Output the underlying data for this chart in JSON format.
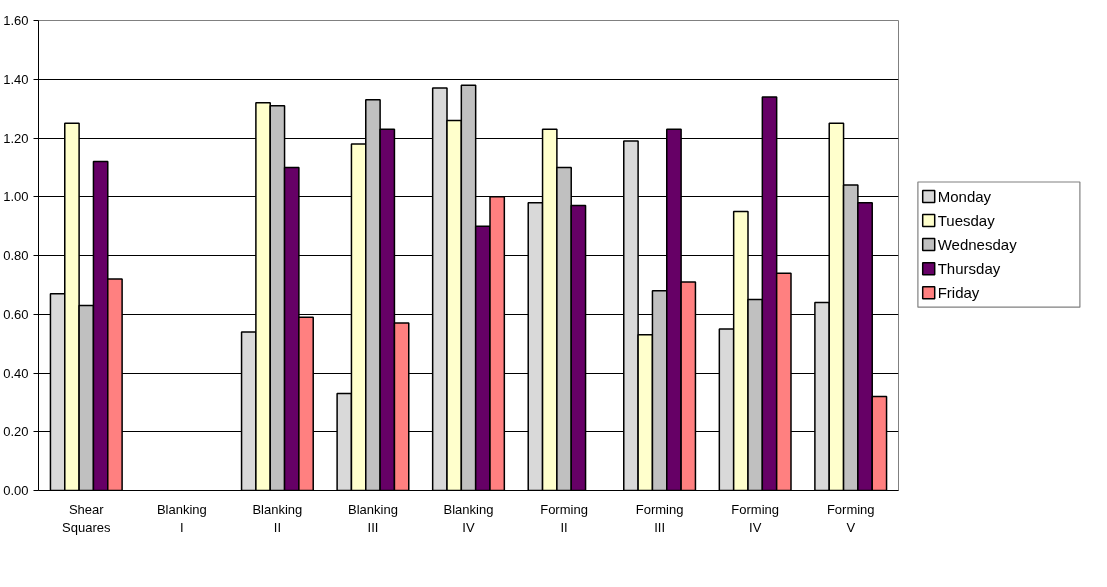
{
  "chart_data": {
    "type": "bar",
    "categories": [
      "Shear\nSquares",
      "Blanking\nI",
      "Blanking\nII",
      "Blanking\nIII",
      "Blanking\nIV",
      "Forming\nII",
      "Forming\nIII",
      "Forming\nIV",
      "Forming\nV"
    ],
    "series": [
      {
        "name": "Monday",
        "color": "#d9d9d9",
        "values": [
          0.67,
          null,
          0.54,
          0.33,
          1.37,
          0.98,
          1.19,
          0.55,
          0.64
        ]
      },
      {
        "name": "Tuesday",
        "color": "#ffffcc",
        "values": [
          1.25,
          null,
          1.32,
          1.18,
          1.26,
          1.23,
          0.53,
          0.95,
          1.25
        ]
      },
      {
        "name": "Wednesday",
        "color": "#c0c0c0",
        "values": [
          0.63,
          null,
          1.31,
          1.33,
          1.38,
          1.1,
          0.68,
          0.65,
          1.04
        ]
      },
      {
        "name": "Thursday",
        "color": "#660066",
        "values": [
          1.12,
          null,
          1.1,
          1.23,
          0.9,
          0.97,
          1.23,
          1.34,
          0.98
        ]
      },
      {
        "name": "Friday",
        "color": "#ff8080",
        "values": [
          0.72,
          null,
          0.59,
          0.57,
          1.0,
          null,
          0.71,
          0.74,
          0.32
        ]
      }
    ],
    "ylim": [
      0,
      1.6
    ],
    "yticks": [
      {
        "value": 0,
        "label": "0.00"
      },
      {
        "value": 0.2,
        "label": "0.20"
      },
      {
        "value": 0.4,
        "label": "0.40"
      },
      {
        "value": 0.6,
        "label": "0.60"
      },
      {
        "value": 0.8,
        "label": "0.80"
      },
      {
        "value": 1.0,
        "label": "1.00"
      },
      {
        "value": 1.2,
        "label": "1.20"
      },
      {
        "value": 1.4,
        "label": "1.40"
      },
      {
        "value": 1.6,
        "label": "1.60"
      }
    ],
    "grid": "y",
    "legend": "right"
  }
}
